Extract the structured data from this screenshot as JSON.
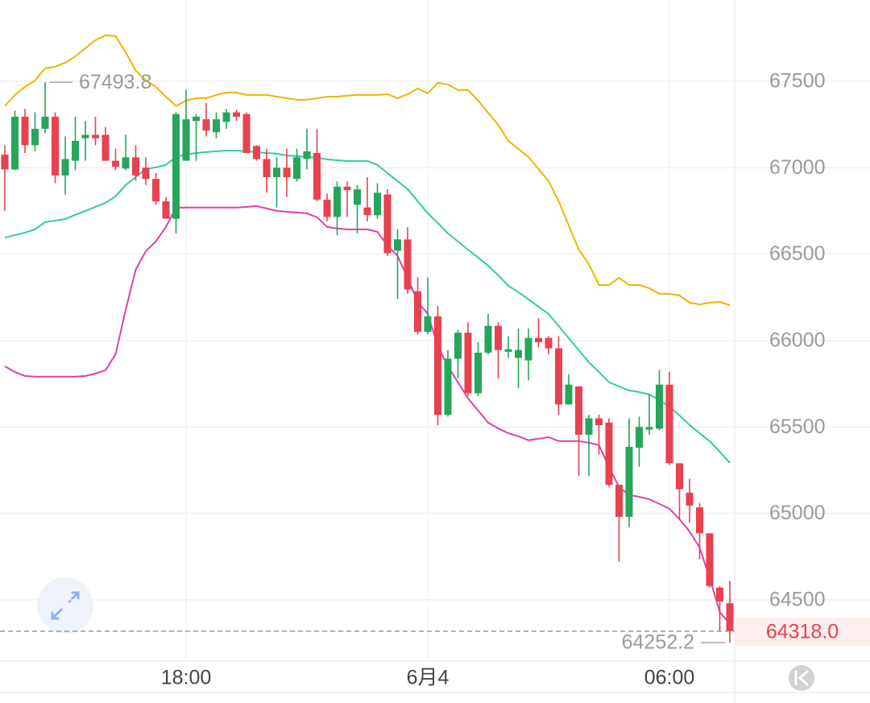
{
  "chart_data": {
    "type": "candlestick",
    "categories": [
      null,
      null,
      null,
      null,
      null,
      null,
      null,
      null,
      null,
      null,
      null,
      null,
      null,
      null,
      null,
      null,
      null,
      null,
      "18:00",
      null,
      null,
      null,
      null,
      null,
      null,
      null,
      null,
      null,
      null,
      null,
      null,
      null,
      null,
      null,
      null,
      null,
      null,
      null,
      null,
      null,
      null,
      null,
      "6月4",
      null,
      null,
      null,
      null,
      null,
      null,
      null,
      null,
      null,
      null,
      null,
      null,
      null,
      null,
      null,
      null,
      null,
      null,
      null,
      null,
      null,
      null,
      null,
      "06:00",
      null,
      null,
      null,
      null,
      null,
      null
    ],
    "candles": {
      "open": [
        67075,
        66990,
        67295,
        67130,
        67225,
        67295,
        66955,
        67040,
        67170,
        67190,
        67190,
        67040,
        66995,
        67060,
        67000,
        66935,
        66805,
        66705,
        67040,
        67270,
        67280,
        67205,
        67265,
        67320,
        67310,
        67125,
        67050,
        66945,
        67000,
        66935,
        67050,
        67085,
        66815,
        66715,
        66890,
        66785,
        66770,
        66725,
        66845,
        66520,
        66585,
        66285,
        66050,
        66140,
        65570,
        65895,
        66045,
        65695,
        65930,
        66085,
        65935,
        65900,
        65885,
        66015,
        66015,
        65955,
        65630,
        65735,
        65455,
        65550,
        65525,
        65165,
        64980,
        65380,
        65485,
        65490,
        65745,
        65290,
        65120,
        65035,
        64885,
        64570,
        64480
      ],
      "high": [
        67130,
        67330,
        67340,
        67320,
        67493.8,
        67320,
        67180,
        67295,
        67270,
        67295,
        67235,
        67110,
        67190,
        67130,
        67060,
        66970,
        66830,
        67320,
        67450,
        67310,
        67375,
        67320,
        67340,
        67335,
        67320,
        67130,
        67110,
        67060,
        67110,
        67110,
        67225,
        67225,
        66850,
        66920,
        66920,
        66900,
        66945,
        66910,
        66875,
        66645,
        66655,
        66365,
        66365,
        66200,
        65945,
        66060,
        66105,
        65990,
        66155,
        66105,
        66025,
        66070,
        66070,
        66130,
        66025,
        66025,
        65805,
        65735,
        65570,
        65570,
        65550,
        65165,
        65550,
        65560,
        65690,
        65830,
        65820,
        65290,
        65200,
        65060,
        64885,
        64580,
        64610
      ],
      "low": [
        66750,
        66985,
        67085,
        67095,
        67200,
        66910,
        66845,
        66985,
        67040,
        67130,
        67040,
        66985,
        66985,
        66925,
        66900,
        66785,
        66705,
        66620,
        67040,
        67040,
        67180,
        67170,
        67225,
        67270,
        67085,
        67040,
        66855,
        66770,
        66830,
        66920,
        66990,
        66805,
        66690,
        66610,
        66715,
        66620,
        66690,
        66705,
        66490,
        66240,
        66270,
        66035,
        66035,
        65510,
        65560,
        65780,
        65680,
        65680,
        65920,
        65780,
        65900,
        65725,
        65770,
        65960,
        65920,
        65570,
        65630,
        65215,
        65215,
        65340,
        65150,
        64720,
        64920,
        65270,
        65455,
        65480,
        65280,
        64965,
        64945,
        64735,
        64570,
        64315,
        64252.2
      ],
      "close": [
        66990,
        67295,
        67130,
        67225,
        67295,
        66955,
        67050,
        67155,
        67190,
        67170,
        67040,
        67005,
        67060,
        66955,
        66935,
        66805,
        66705,
        67310,
        67280,
        67295,
        67215,
        67280,
        67320,
        67295,
        67085,
        67050,
        66945,
        67000,
        66945,
        67060,
        67095,
        66815,
        66715,
        66890,
        66870,
        66875,
        66725,
        66855,
        66505,
        66585,
        66295,
        66050,
        66140,
        65570,
        65895,
        66045,
        65695,
        65930,
        66085,
        65945,
        65950,
        65945,
        66015,
        65990,
        65955,
        65630,
        65745,
        65455,
        65550,
        65510,
        65165,
        64980,
        65385,
        65500,
        65500,
        65745,
        65290,
        65140,
        65045,
        64885,
        64580,
        64490,
        64318
      ]
    },
    "up_color": "#26a65b",
    "down_color": "#e8414f",
    "series": [
      {
        "color": "#f0b400",
        "values": [
          67356,
          67421,
          67467,
          67505,
          67575,
          67584,
          67607,
          67644,
          67691,
          67738,
          67766,
          67761,
          67668,
          67561,
          67505,
          67467,
          67411,
          67356,
          67388,
          67402,
          67402,
          67421,
          67435,
          67435,
          67421,
          67421,
          67421,
          67411,
          67402,
          67393,
          67393,
          67402,
          67411,
          67411,
          67416,
          67421,
          67421,
          67421,
          67425,
          67402,
          67425,
          67458,
          67430,
          67491,
          67481,
          67449,
          67449,
          67388,
          67318,
          67248,
          67155,
          67109,
          67062,
          66992,
          66922,
          66806,
          66666,
          66526,
          66442,
          66321,
          66321,
          66363,
          66321,
          66321,
          66303,
          66270,
          66270,
          66261,
          66219,
          66209,
          66219,
          66223,
          66205
        ]
      },
      {
        "color": "#2fcf9f",
        "values": [
          66596,
          66610,
          66624,
          66643,
          66685,
          66694,
          66703,
          66727,
          66750,
          66773,
          66797,
          66834,
          66899,
          66946,
          66992,
          67002,
          67016,
          67062,
          67076,
          67085,
          67090,
          67095,
          67099,
          67099,
          67095,
          67090,
          67085,
          67081,
          67071,
          67067,
          67062,
          67057,
          67048,
          67043,
          67039,
          67039,
          67039,
          67016,
          66969,
          66922,
          66876,
          66806,
          66736,
          66680,
          66620,
          66573,
          66526,
          66480,
          66433,
          66377,
          66317,
          66280,
          66238,
          66196,
          66154,
          66084,
          66014,
          65944,
          65874,
          65818,
          65758,
          65735,
          65711,
          65702,
          65688,
          65655,
          65618,
          65567,
          65511,
          65464,
          65418,
          65357,
          65292
        ]
      },
      {
        "color": "#e040a8",
        "values": [
          65851,
          65818,
          65795,
          65791,
          65791,
          65791,
          65791,
          65791,
          65795,
          65809,
          65828,
          65921,
          66177,
          66410,
          66517,
          66573,
          66657,
          66769,
          66769,
          66769,
          66769,
          66769,
          66769,
          66769,
          66773,
          66778,
          66764,
          66750,
          66745,
          66741,
          66736,
          66713,
          66657,
          66648,
          66643,
          66643,
          66643,
          66629,
          66550,
          66489,
          66363,
          66224,
          66154,
          65968,
          65851,
          65758,
          65665,
          65595,
          65525,
          65492,
          65464,
          65446,
          65423,
          65432,
          65441,
          65418,
          65418,
          65418,
          65409,
          65395,
          65269,
          65152,
          65106,
          65096,
          65082,
          65055,
          65027,
          64966,
          64896,
          64803,
          64626,
          64430,
          64360
        ]
      }
    ],
    "ylim": [
      64150,
      67970
    ],
    "yticks": [
      64500,
      65000,
      65500,
      66000,
      66500,
      67000,
      67500
    ],
    "grid": true,
    "high_marker": 67493.8,
    "low_marker": 64252.2,
    "last_price": {
      "value": 64318,
      "label": "64318.0"
    }
  }
}
